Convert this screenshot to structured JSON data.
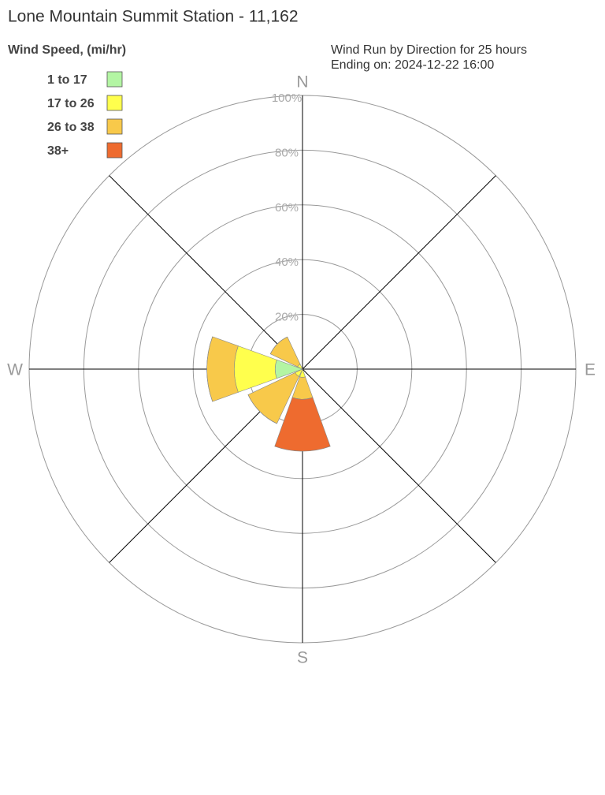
{
  "chart_data": {
    "type": "windrose",
    "title": "Lone Mountain Summit Station - 11,162",
    "legend_title": "Wind Speed, (mi/hr)",
    "subtitle": [
      "Wind Run by Direction for 25 hours",
      "Ending on: 2024-12-22 16:00"
    ],
    "categories": [
      "N",
      null,
      "E",
      null,
      "S",
      null,
      "W",
      null
    ],
    "series": [
      {
        "name": "1 to 17",
        "color": "#b3f5a3",
        "values": [
          0,
          0,
          0,
          0,
          0,
          0,
          10,
          0
        ]
      },
      {
        "name": "17 to 26",
        "color": "#ffff4d",
        "values": [
          0,
          0,
          0,
          0,
          3,
          3,
          15,
          2
        ]
      },
      {
        "name": "26 to 38",
        "color": "#f8c94a",
        "values": [
          0,
          0,
          0,
          0,
          8,
          19,
          10,
          11
        ]
      },
      {
        "name": "38+",
        "color": "#ee6b2f",
        "values": [
          0,
          0,
          0,
          0,
          19,
          0,
          0,
          0
        ]
      }
    ],
    "rlim": [
      0,
      100
    ],
    "rticks": [
      {
        "value": 20,
        "label": "20%"
      },
      {
        "value": 40,
        "label": "40%"
      },
      {
        "value": 60,
        "label": "60%"
      },
      {
        "value": 80,
        "label": "80%"
      },
      {
        "value": 100,
        "label": "100%"
      }
    ],
    "grid": true,
    "legend": "upper-left"
  }
}
